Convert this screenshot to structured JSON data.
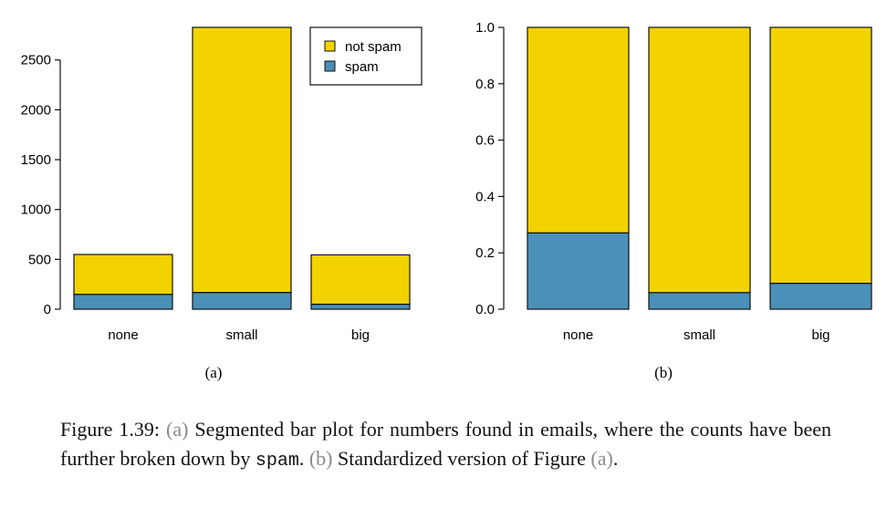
{
  "chart_data": [
    {
      "type": "bar",
      "stacked": true,
      "panel_label": "(a)",
      "categories": [
        "none",
        "small",
        "big"
      ],
      "series": [
        {
          "name": "spam",
          "color": "#4a90b8",
          "values": [
            149,
            168,
            50
          ]
        },
        {
          "name": "not spam",
          "color": "#f2d300",
          "values": [
            400,
            2659,
            495
          ]
        }
      ],
      "yticks": [
        0,
        500,
        1000,
        1500,
        2000,
        2500
      ],
      "ylim": [
        0,
        2827
      ],
      "legend": {
        "placement": "top-right",
        "entries": [
          "not spam",
          "spam"
        ]
      },
      "grid": false
    },
    {
      "type": "bar",
      "stacked": true,
      "panel_label": "(b)",
      "categories": [
        "none",
        "small",
        "big"
      ],
      "series": [
        {
          "name": "spam",
          "color": "#4a90b8",
          "values": [
            0.271,
            0.059,
            0.092
          ]
        },
        {
          "name": "not spam",
          "color": "#f2d300",
          "values": [
            0.729,
            0.941,
            0.908
          ]
        }
      ],
      "yticks": [
        "0.0",
        "0.2",
        "0.4",
        "0.6",
        "0.8",
        "1.0"
      ],
      "ylim": [
        0,
        1
      ],
      "grid": false
    }
  ],
  "caption": {
    "label": "Figure 1.39:",
    "ref_a": "(a)",
    "part1": "Segmented bar plot for numbers found in emails, where the counts have been further broken down by",
    "code": "spam",
    "part2": ".",
    "ref_b": "(b)",
    "part3": "Standardized version of Figure",
    "ref_a2": "(a)",
    "part4": "."
  }
}
